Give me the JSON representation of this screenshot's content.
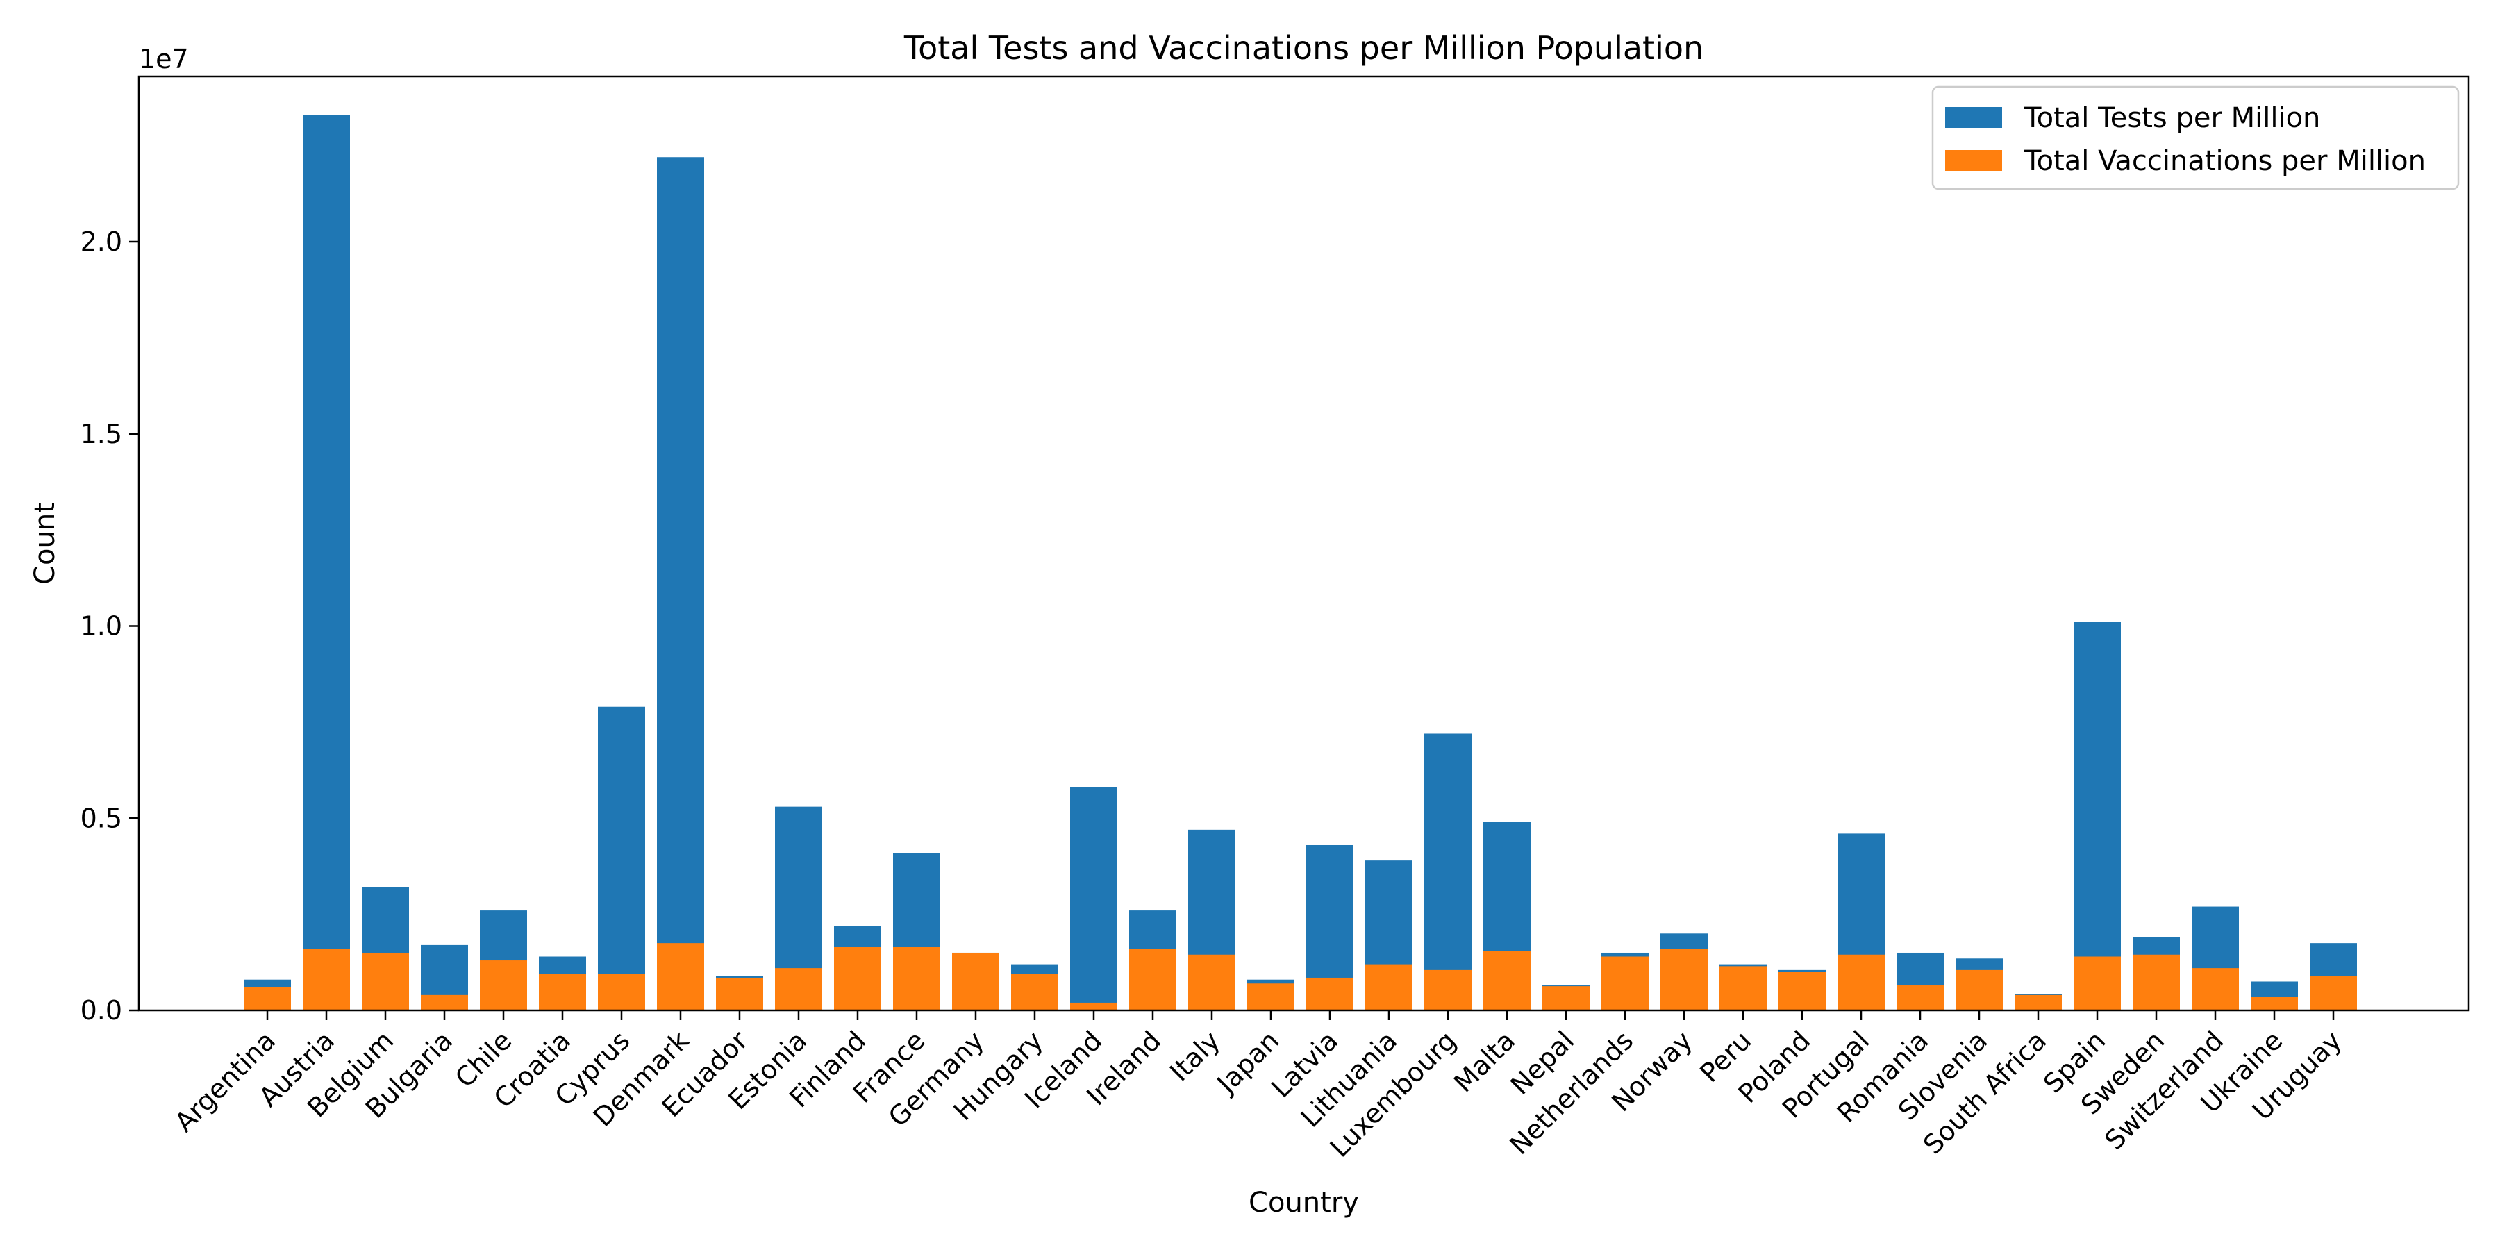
{
  "chart_data": {
    "type": "bar",
    "title": "Total Tests and Vaccinations per Million Population",
    "xlabel": "Country",
    "ylabel": "Count",
    "y_offset_label": "1e7",
    "ylim": [
      0,
      24300000
    ],
    "y_ticks": [
      0,
      5000000,
      10000000,
      15000000,
      20000000
    ],
    "y_tick_labels": [
      "0.0",
      "0.5",
      "1.0",
      "1.5",
      "2.0"
    ],
    "grid": false,
    "legend_position": "top-right",
    "categories": [
      "Argentina",
      "Austria",
      "Belgium",
      "Bulgaria",
      "Chile",
      "Croatia",
      "Cyprus",
      "Denmark",
      "Ecuador",
      "Estonia",
      "Finland",
      "France",
      "Germany",
      "Hungary",
      "Iceland",
      "Ireland",
      "Italy",
      "Japan",
      "Latvia",
      "Lithuania",
      "Luxembourg",
      "Malta",
      "Nepal",
      "Netherlands",
      "Norway",
      "Peru",
      "Poland",
      "Portugal",
      "Romania",
      "Slovenia",
      "South Africa",
      "Spain",
      "Sweden",
      "Switzerland",
      "Ukraine",
      "Uruguay"
    ],
    "series": [
      {
        "name": "Total Tests per Million",
        "color": "#1f77b4",
        "values": [
          800000,
          23300000,
          3200000,
          1700000,
          2600000,
          1400000,
          7900000,
          22200000,
          900000,
          5300000,
          2200000,
          4100000,
          1500000,
          1200000,
          5800000,
          2600000,
          4700000,
          800000,
          4300000,
          3900000,
          7200000,
          4900000,
          650000,
          1500000,
          2000000,
          1200000,
          1050000,
          4600000,
          1500000,
          1350000,
          430000,
          10100000,
          1900000,
          2700000,
          750000,
          1750000
        ]
      },
      {
        "name": "Total Vaccinations per Million",
        "color": "#ff7f0e",
        "values": [
          600000,
          1600000,
          1500000,
          400000,
          1300000,
          950000,
          950000,
          1750000,
          850000,
          1100000,
          1650000,
          1650000,
          1500000,
          950000,
          200000,
          1600000,
          1450000,
          700000,
          850000,
          1200000,
          1050000,
          1550000,
          630000,
          1400000,
          1600000,
          1150000,
          1000000,
          1450000,
          650000,
          1050000,
          400000,
          1400000,
          1450000,
          1100000,
          350000,
          900000
        ]
      }
    ]
  }
}
